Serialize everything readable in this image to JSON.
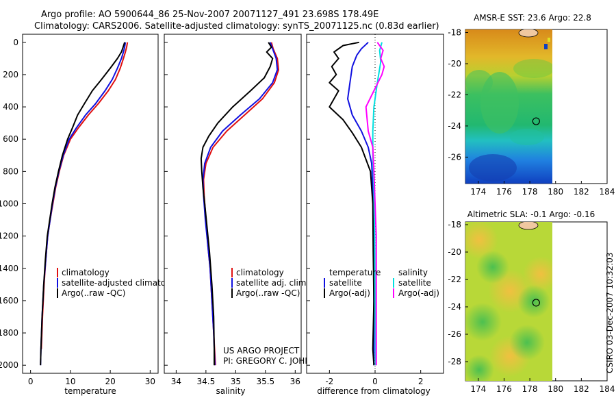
{
  "title_line1": "Argo profile: AO 5900644_86 25-Nov-2007 20071127_491 23.698S 178.49E",
  "title_line2": "Climatology: CARS2006. Satellite-adjusted climatology: synTS_20071125.nc (0.83d earlier)",
  "credit_line1": "US ARGO PROJECT",
  "credit_line2": "PI: GREGORY C. JOHNSON",
  "timestamp": "CSIRO 03-Dec-2007 10:32:03",
  "colors": {
    "climatology": "#e01010",
    "satellite": "#1010e0",
    "argo": "#000000",
    "satellite_salinity": "#00e0e0",
    "argo_salinity": "#ff00ff"
  },
  "chart_data": [
    {
      "type": "line",
      "name": "temperature-profile",
      "xlabel": "temperature",
      "ylabel": "",
      "xlim": [
        -2,
        32
      ],
      "ylim": [
        2050,
        -50
      ],
      "xticks": [
        "0",
        "10",
        "20",
        "30"
      ],
      "xtick_values": [
        0,
        10,
        20,
        30
      ],
      "yticks": [
        "0",
        "200",
        "400",
        "600",
        "800",
        "1000",
        "1200",
        "1400",
        "1600",
        "1800",
        "2000"
      ],
      "ytick_values": [
        0,
        200,
        400,
        600,
        800,
        1000,
        1200,
        1400,
        1600,
        1800,
        2000
      ],
      "legend": [
        "climatology",
        "satellite-adjusted climatology",
        "Argo(..raw -QC)"
      ],
      "series": [
        {
          "name": "climatology",
          "color": "#e01010",
          "points": [
            [
              24.3,
              0
            ],
            [
              24.1,
              30
            ],
            [
              23.8,
              60
            ],
            [
              23.3,
              100
            ],
            [
              22.5,
              160
            ],
            [
              21.3,
              230
            ],
            [
              19.5,
              300
            ],
            [
              17.0,
              380
            ],
            [
              14.5,
              450
            ],
            [
              12.0,
              530
            ],
            [
              10.0,
              600
            ],
            [
              8.3,
              700
            ],
            [
              7.2,
              800
            ],
            [
              6.3,
              900
            ],
            [
              5.6,
              1000
            ],
            [
              4.9,
              1100
            ],
            [
              4.3,
              1200
            ],
            [
              3.8,
              1350
            ],
            [
              3.4,
              1500
            ],
            [
              3.0,
              1700
            ],
            [
              2.7,
              1900
            ]
          ]
        },
        {
          "name": "satellite",
          "color": "#1010e0",
          "points": [
            [
              23.8,
              0
            ],
            [
              23.6,
              30
            ],
            [
              23.3,
              60
            ],
            [
              22.8,
              100
            ],
            [
              21.8,
              160
            ],
            [
              20.5,
              230
            ],
            [
              18.7,
              300
            ],
            [
              16.3,
              380
            ],
            [
              13.8,
              450
            ],
            [
              11.5,
              530
            ],
            [
              9.7,
              600
            ],
            [
              8.2,
              700
            ],
            [
              7.1,
              800
            ],
            [
              6.2,
              900
            ],
            [
              5.5,
              1000
            ],
            [
              4.9,
              1100
            ],
            [
              4.3,
              1200
            ],
            [
              3.8,
              1350
            ],
            [
              3.3,
              1500
            ],
            [
              2.9,
              1700
            ],
            [
              2.6,
              1900
            ],
            [
              2.5,
              2000
            ]
          ]
        },
        {
          "name": "argo",
          "color": "#000000",
          "points": [
            [
              23.6,
              0
            ],
            [
              23.2,
              30
            ],
            [
              22.8,
              60
            ],
            [
              21.8,
              100
            ],
            [
              20.0,
              160
            ],
            [
              17.8,
              230
            ],
            [
              15.5,
              300
            ],
            [
              13.5,
              380
            ],
            [
              11.8,
              450
            ],
            [
              10.5,
              530
            ],
            [
              9.3,
              600
            ],
            [
              8.0,
              700
            ],
            [
              7.0,
              800
            ],
            [
              6.1,
              900
            ],
            [
              5.4,
              1000
            ],
            [
              4.8,
              1100
            ],
            [
              4.2,
              1200
            ],
            [
              3.7,
              1350
            ],
            [
              3.3,
              1500
            ],
            [
              2.9,
              1700
            ],
            [
              2.6,
              1900
            ],
            [
              2.5,
              2000
            ]
          ]
        }
      ]
    },
    {
      "type": "line",
      "name": "salinity-profile",
      "xlabel": "salinity",
      "xlim": [
        33.8,
        36.1
      ],
      "ylim": [
        2050,
        -50
      ],
      "xticks": [
        "34",
        "34.5",
        "35",
        "35.5",
        "36"
      ],
      "xtick_values": [
        34,
        34.5,
        35,
        35.5,
        36
      ],
      "legend": [
        "climatology",
        "satellite adj. clim.",
        "Argo(..raw -QC)"
      ],
      "series": [
        {
          "name": "climatology",
          "color": "#e01010",
          "points": [
            [
              35.6,
              0
            ],
            [
              35.63,
              40
            ],
            [
              35.7,
              100
            ],
            [
              35.72,
              170
            ],
            [
              35.65,
              250
            ],
            [
              35.45,
              350
            ],
            [
              35.15,
              450
            ],
            [
              34.85,
              550
            ],
            [
              34.62,
              650
            ],
            [
              34.5,
              750
            ],
            [
              34.46,
              850
            ],
            [
              34.47,
              950
            ],
            [
              34.5,
              1100
            ],
            [
              34.53,
              1250
            ],
            [
              34.57,
              1400
            ],
            [
              34.6,
              1600
            ],
            [
              34.63,
              1800
            ],
            [
              34.66,
              2000
            ]
          ]
        },
        {
          "name": "satellite",
          "color": "#1010e0",
          "points": [
            [
              35.58,
              0
            ],
            [
              35.62,
              40
            ],
            [
              35.68,
              100
            ],
            [
              35.7,
              170
            ],
            [
              35.62,
              250
            ],
            [
              35.4,
              350
            ],
            [
              35.08,
              450
            ],
            [
              34.78,
              550
            ],
            [
              34.58,
              650
            ],
            [
              34.48,
              750
            ],
            [
              34.45,
              850
            ],
            [
              34.46,
              950
            ],
            [
              34.49,
              1100
            ],
            [
              34.53,
              1250
            ],
            [
              34.57,
              1400
            ],
            [
              34.6,
              1600
            ],
            [
              34.63,
              1800
            ],
            [
              34.65,
              2000
            ]
          ]
        },
        {
          "name": "argo",
          "color": "#000000",
          "points": [
            [
              35.55,
              0
            ],
            [
              35.6,
              30
            ],
            [
              35.52,
              60
            ],
            [
              35.62,
              100
            ],
            [
              35.58,
              150
            ],
            [
              35.48,
              220
            ],
            [
              35.25,
              300
            ],
            [
              34.95,
              400
            ],
            [
              34.7,
              500
            ],
            [
              34.55,
              580
            ],
            [
              34.45,
              650
            ],
            [
              34.42,
              720
            ],
            [
              34.43,
              800
            ],
            [
              34.45,
              900
            ],
            [
              34.48,
              1000
            ],
            [
              34.52,
              1150
            ],
            [
              34.56,
              1300
            ],
            [
              34.6,
              1500
            ],
            [
              34.63,
              1700
            ],
            [
              34.64,
              1900
            ],
            [
              34.64,
              2000
            ]
          ]
        }
      ]
    },
    {
      "type": "line",
      "name": "difference-profile",
      "xlabel": "difference from climatology",
      "xlim": [
        -3,
        3
      ],
      "ylim": [
        2050,
        -50
      ],
      "xticks": [
        "-2",
        "0",
        "2"
      ],
      "xtick_values": [
        -2,
        0,
        2
      ],
      "legend_temperature": [
        "temperature",
        "satellite",
        "Argo(-adj)"
      ],
      "legend_salinity": [
        "salinity",
        "satellite",
        "Argo(-adj)"
      ],
      "series": [
        {
          "name": "temperature satellite",
          "color": "#1010e0",
          "points": [
            [
              -0.3,
              0
            ],
            [
              -0.6,
              40
            ],
            [
              -0.8,
              80
            ],
            [
              -1.0,
              150
            ],
            [
              -1.1,
              250
            ],
            [
              -1.2,
              350
            ],
            [
              -1.0,
              450
            ],
            [
              -0.6,
              550
            ],
            [
              -0.3,
              650
            ],
            [
              -0.15,
              750
            ],
            [
              -0.1,
              900
            ],
            [
              -0.08,
              1100
            ],
            [
              -0.06,
              1400
            ],
            [
              -0.05,
              1700
            ],
            [
              -0.05,
              2000
            ]
          ]
        },
        {
          "name": "temperature argo",
          "color": "#000000",
          "points": [
            [
              -0.7,
              0
            ],
            [
              -1.4,
              20
            ],
            [
              -1.8,
              60
            ],
            [
              -1.6,
              100
            ],
            [
              -1.9,
              150
            ],
            [
              -1.7,
              200
            ],
            [
              -2.0,
              250
            ],
            [
              -1.6,
              300
            ],
            [
              -2.0,
              400
            ],
            [
              -1.4,
              480
            ],
            [
              -1.0,
              560
            ],
            [
              -0.6,
              650
            ],
            [
              -0.2,
              800
            ],
            [
              -0.1,
              1000
            ],
            [
              -0.08,
              1300
            ],
            [
              -0.05,
              1600
            ],
            [
              -0.1,
              1900
            ],
            [
              -0.05,
              2000
            ]
          ]
        },
        {
          "name": "salinity satellite",
          "color": "#00e0e0",
          "points": [
            [
              0.3,
              0
            ],
            [
              0.2,
              50
            ],
            [
              0.25,
              120
            ],
            [
              0.1,
              250
            ],
            [
              -0.05,
              400
            ],
            [
              -0.1,
              550
            ],
            [
              -0.1,
              700
            ],
            [
              -0.05,
              900
            ],
            [
              -0.02,
              1200
            ],
            [
              0.0,
              1600
            ],
            [
              0.02,
              2000
            ]
          ]
        },
        {
          "name": "salinity argo",
          "color": "#ff00ff",
          "points": [
            [
              0.1,
              0
            ],
            [
              0.35,
              50
            ],
            [
              0.25,
              100
            ],
            [
              0.4,
              150
            ],
            [
              0.3,
              200
            ],
            [
              -0.05,
              300
            ],
            [
              -0.4,
              400
            ],
            [
              -0.3,
              550
            ],
            [
              -0.1,
              650
            ],
            [
              -0.05,
              800
            ],
            [
              0.0,
              1000
            ],
            [
              0.05,
              1200
            ],
            [
              0.05,
              1500
            ],
            [
              0.05,
              1800
            ],
            [
              0.05,
              2000
            ]
          ]
        }
      ]
    },
    {
      "type": "heatmap",
      "name": "sst-map",
      "title": "AMSR-E SST: 23.6  Argo: 22.8",
      "xlim": [
        173,
        184
      ],
      "ylim": [
        -27.7,
        -17.8
      ],
      "xticks": [
        "174",
        "176",
        "178",
        "180",
        "182",
        "184"
      ],
      "xtick_values": [
        174,
        176,
        178,
        180,
        182,
        184
      ],
      "yticks": [
        "-18",
        "-20",
        "-22",
        "-24",
        "-26",
        "-28"
      ],
      "ytick_values": [
        -18,
        -20,
        -22,
        -24,
        -26,
        -28
      ],
      "data_extent_lon": [
        173,
        180
      ],
      "argo_position": {
        "lon": 178.49,
        "lat": -23.698
      },
      "argo_value": 22.8,
      "field_value": 23.6
    },
    {
      "type": "heatmap",
      "name": "sla-map",
      "title": "Altimetric SLA: -0.1  Argo: -0.16",
      "xlim": [
        173,
        184
      ],
      "ylim": [
        -29.4,
        -17.8
      ],
      "xticks": [
        "174",
        "176",
        "178",
        "180",
        "182",
        "184"
      ],
      "xtick_values": [
        174,
        176,
        178,
        180,
        182,
        184
      ],
      "yticks": [
        "-18",
        "-20",
        "-22",
        "-24",
        "-26",
        "-28"
      ],
      "ytick_values": [
        -18,
        -20,
        -22,
        -24,
        -26,
        -28
      ],
      "data_extent_lon": [
        173,
        180
      ],
      "argo_position": {
        "lon": 178.49,
        "lat": -23.698
      },
      "argo_value": -0.16,
      "field_value": -0.1
    }
  ]
}
